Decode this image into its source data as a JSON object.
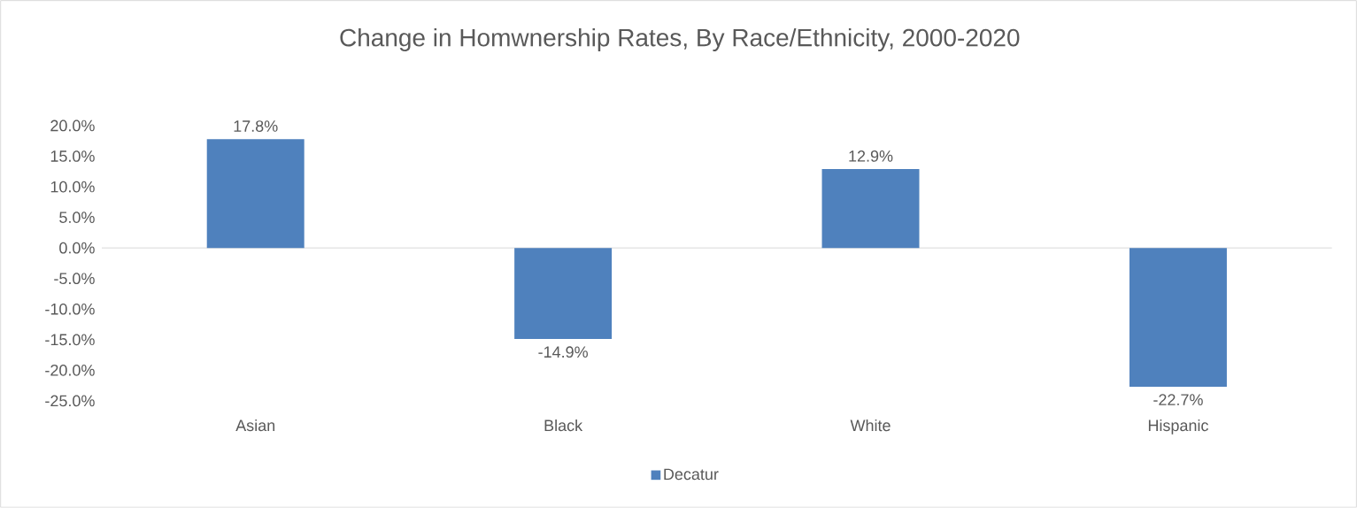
{
  "chart_data": {
    "type": "bar",
    "title": "Change in Homwnership Rates, By Race/Ethnicity, 2000-2020",
    "categories": [
      "Asian",
      "Black",
      "White",
      "Hispanic"
    ],
    "series": [
      {
        "name": "Decatur",
        "color": "#4f81bd",
        "values": [
          17.8,
          -14.9,
          12.9,
          -22.7
        ]
      }
    ],
    "value_labels": [
      "17.8%",
      "-14.9%",
      "12.9%",
      "-22.7%"
    ],
    "ylim": [
      -25,
      20
    ],
    "yticks": [
      {
        "value": -25,
        "label": "-25.0%"
      },
      {
        "value": -20,
        "label": "-20.0%"
      },
      {
        "value": -15,
        "label": "-15.0%"
      },
      {
        "value": -10,
        "label": "-10.0%"
      },
      {
        "value": -5,
        "label": "-5.0%"
      },
      {
        "value": 0,
        "label": "0.0%"
      },
      {
        "value": 5,
        "label": "5.0%"
      },
      {
        "value": 10,
        "label": "10.0%"
      },
      {
        "value": 15,
        "label": "15.0%"
      },
      {
        "value": 20,
        "label": "20.0%"
      }
    ],
    "legend": "bottom"
  }
}
